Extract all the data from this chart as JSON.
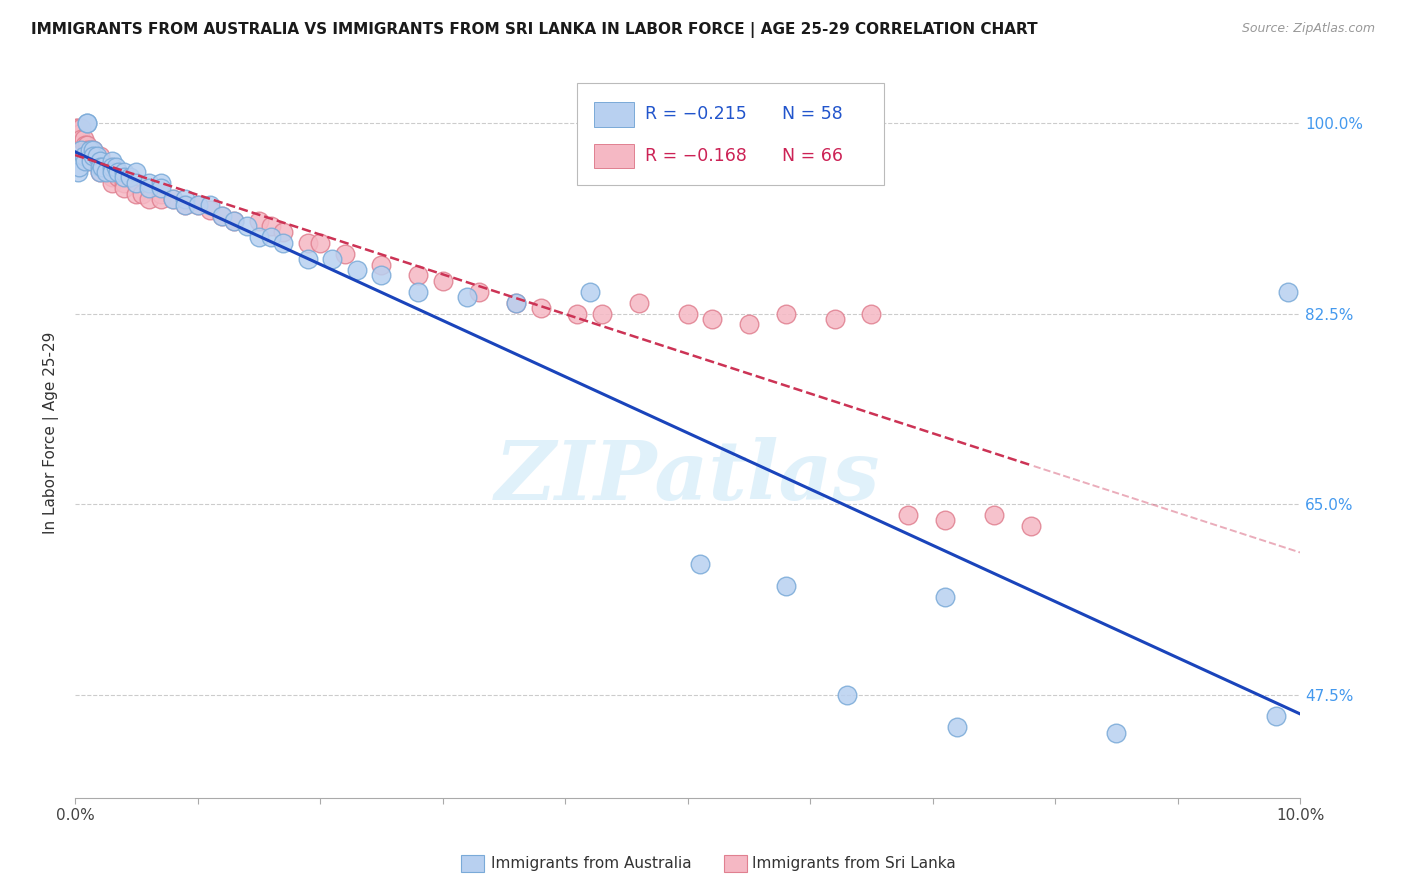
{
  "title": "IMMIGRANTS FROM AUSTRALIA VS IMMIGRANTS FROM SRI LANKA IN LABOR FORCE | AGE 25-29 CORRELATION CHART",
  "source": "Source: ZipAtlas.com",
  "ylabel": "In Labor Force | Age 25-29",
  "xlim": [
    0.0,
    0.1
  ],
  "ylim": [
    0.38,
    1.05
  ],
  "xticks": [
    0.0,
    0.01,
    0.02,
    0.03,
    0.04,
    0.05,
    0.06,
    0.07,
    0.08,
    0.09,
    0.1
  ],
  "xticklabels": [
    "0.0%",
    "",
    "",
    "",
    "",
    "",
    "",
    "",
    "",
    "",
    "10.0%"
  ],
  "ytick_positions": [
    0.475,
    0.65,
    0.825,
    1.0
  ],
  "ytick_labels": [
    "47.5%",
    "65.0%",
    "82.5%",
    "100.0%"
  ],
  "australia_color": "#b8d0f0",
  "australia_edge": "#7aaad8",
  "srilanka_color": "#f5b8c4",
  "srilanka_edge": "#e08090",
  "trendline_australia_color": "#1a44bb",
  "trendline_srilanka_color": "#cc3355",
  "legend_R_australia": "R = −0.215",
  "legend_N_australia": "58",
  "legend_R_srilanka": "R = −0.168",
  "legend_N_srilanka": "66",
  "australia_x": [
    0.0002,
    0.0003,
    0.0005,
    0.0007,
    0.0008,
    0.001,
    0.001,
    0.0012,
    0.0013,
    0.0015,
    0.0015,
    0.0018,
    0.002,
    0.002,
    0.002,
    0.0022,
    0.0025,
    0.003,
    0.003,
    0.003,
    0.0033,
    0.0035,
    0.004,
    0.004,
    0.0045,
    0.005,
    0.005,
    0.006,
    0.006,
    0.007,
    0.007,
    0.008,
    0.009,
    0.009,
    0.01,
    0.011,
    0.012,
    0.013,
    0.014,
    0.015,
    0.016,
    0.017,
    0.019,
    0.021,
    0.023,
    0.025,
    0.028,
    0.032,
    0.036,
    0.042,
    0.051,
    0.058,
    0.063,
    0.071,
    0.072,
    0.085,
    0.098,
    0.099
  ],
  "australia_y": [
    0.955,
    0.96,
    0.975,
    0.97,
    0.965,
    1.0,
    1.0,
    0.975,
    0.965,
    0.975,
    0.97,
    0.97,
    0.965,
    0.96,
    0.955,
    0.96,
    0.955,
    0.965,
    0.96,
    0.955,
    0.96,
    0.955,
    0.955,
    0.95,
    0.95,
    0.955,
    0.945,
    0.945,
    0.94,
    0.945,
    0.94,
    0.93,
    0.93,
    0.925,
    0.925,
    0.925,
    0.915,
    0.91,
    0.905,
    0.895,
    0.895,
    0.89,
    0.875,
    0.875,
    0.865,
    0.86,
    0.845,
    0.84,
    0.835,
    0.845,
    0.595,
    0.575,
    0.475,
    0.565,
    0.445,
    0.44,
    0.455,
    0.845
  ],
  "srilanka_x": [
    0.0001,
    0.0002,
    0.0003,
    0.0005,
    0.0005,
    0.0007,
    0.0008,
    0.001,
    0.001,
    0.001,
    0.0012,
    0.0013,
    0.0015,
    0.0015,
    0.0017,
    0.002,
    0.002,
    0.002,
    0.0022,
    0.0025,
    0.003,
    0.003,
    0.003,
    0.003,
    0.0035,
    0.004,
    0.004,
    0.004,
    0.005,
    0.005,
    0.0055,
    0.006,
    0.006,
    0.007,
    0.007,
    0.008,
    0.009,
    0.01,
    0.011,
    0.012,
    0.013,
    0.015,
    0.016,
    0.017,
    0.019,
    0.02,
    0.022,
    0.025,
    0.028,
    0.03,
    0.033,
    0.036,
    0.038,
    0.041,
    0.043,
    0.046,
    0.05,
    0.052,
    0.055,
    0.058,
    0.062,
    0.065,
    0.068,
    0.071,
    0.075,
    0.078
  ],
  "srilanka_y": [
    0.995,
    0.995,
    0.99,
    0.995,
    0.985,
    0.985,
    0.98,
    0.98,
    0.975,
    0.965,
    0.975,
    0.97,
    0.975,
    0.97,
    0.965,
    0.97,
    0.965,
    0.955,
    0.96,
    0.955,
    0.96,
    0.955,
    0.95,
    0.945,
    0.95,
    0.95,
    0.945,
    0.94,
    0.945,
    0.935,
    0.935,
    0.94,
    0.93,
    0.935,
    0.93,
    0.93,
    0.925,
    0.925,
    0.92,
    0.915,
    0.91,
    0.91,
    0.905,
    0.9,
    0.89,
    0.89,
    0.88,
    0.87,
    0.86,
    0.855,
    0.845,
    0.835,
    0.83,
    0.825,
    0.825,
    0.835,
    0.825,
    0.82,
    0.815,
    0.825,
    0.82,
    0.825,
    0.64,
    0.635,
    0.64,
    0.63
  ],
  "watermark_text": "ZIPatlas",
  "background_color": "#ffffff",
  "grid_color": "#cccccc"
}
